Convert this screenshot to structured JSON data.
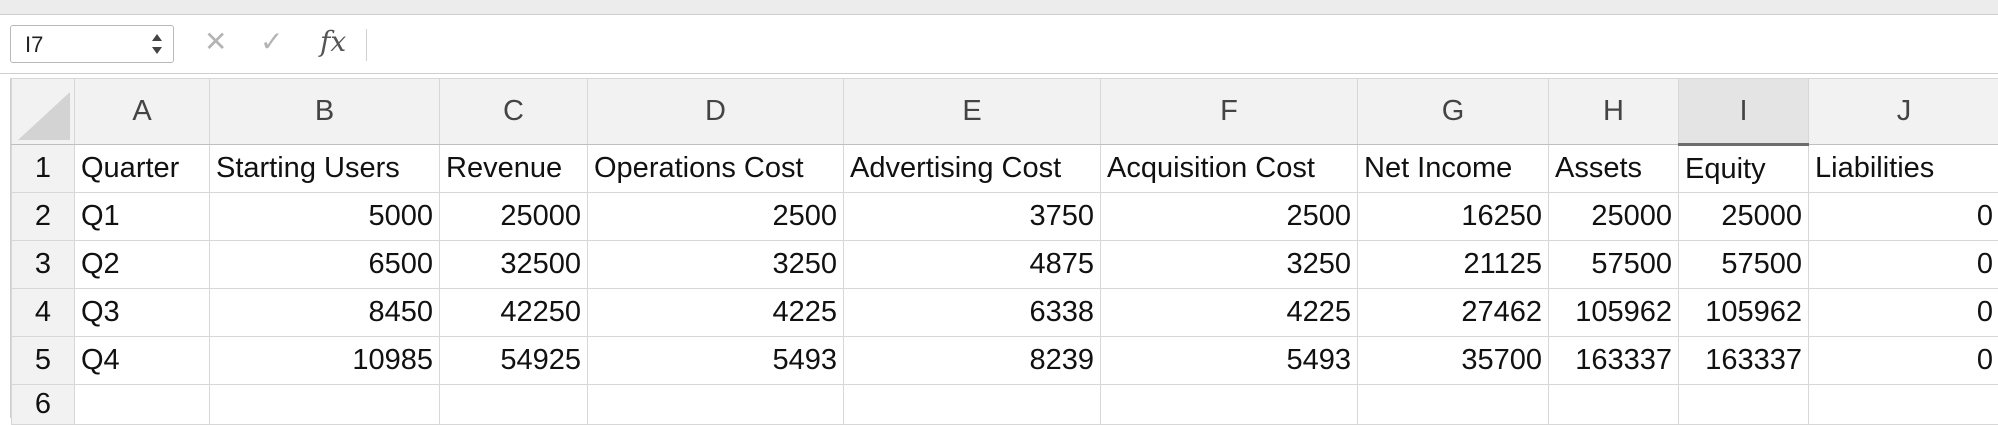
{
  "name_box": {
    "value": "I7"
  },
  "formula_bar": {
    "cancel_icon": "x-icon",
    "enter_icon": "checkmark-icon",
    "function_label": "fx",
    "value": ""
  },
  "columns": [
    "A",
    "B",
    "C",
    "D",
    "E",
    "F",
    "G",
    "H",
    "I",
    "J"
  ],
  "selected_column": "I",
  "row_numbers": [
    "1",
    "2",
    "3",
    "4",
    "5",
    "6"
  ],
  "headers": [
    "Quarter",
    "Starting Users",
    "Revenue",
    "Operations Cost",
    "Advertising Cost",
    "Acquisition Cost",
    "Net Income",
    "Assets",
    "Equity",
    "Liabilities"
  ],
  "rows": [
    [
      "Q1",
      "5000",
      "25000",
      "2500",
      "3750",
      "2500",
      "16250",
      "25000",
      "25000",
      "0"
    ],
    [
      "Q2",
      "6500",
      "32500",
      "3250",
      "4875",
      "3250",
      "21125",
      "57500",
      "57500",
      "0"
    ],
    [
      "Q3",
      "8450",
      "42250",
      "4225",
      "6338",
      "4225",
      "27462",
      "105962",
      "105962",
      "0"
    ],
    [
      "Q4",
      "10985",
      "54925",
      "5493",
      "8239",
      "5493",
      "35700",
      "163337",
      "163337",
      "0"
    ]
  ]
}
